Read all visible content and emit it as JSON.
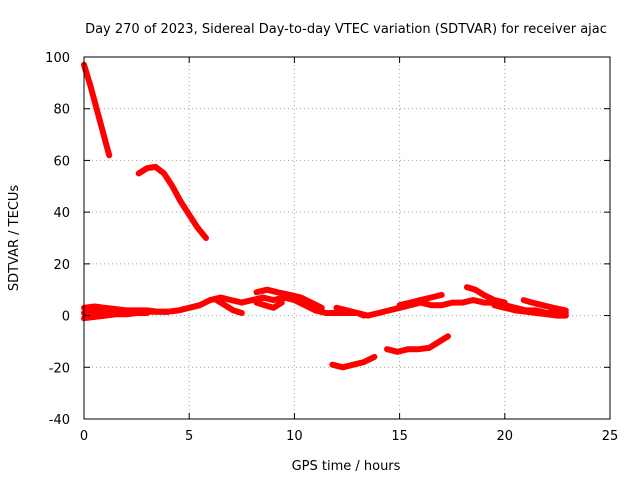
{
  "chart_data": {
    "type": "line",
    "title": "Day 270 of 2023, Sidereal Day-to-day VTEC variation (SDTVAR) for receiver ajac",
    "xlabel": "GPS time / hours",
    "ylabel": "SDTVAR / TECUs",
    "xlim": [
      0,
      25
    ],
    "ylim": [
      -40,
      100
    ],
    "xticks": [
      0,
      5,
      10,
      15,
      20,
      25
    ],
    "yticks": [
      -40,
      -20,
      0,
      20,
      40,
      60,
      80,
      100
    ],
    "xtick_labels": [
      "0",
      "5",
      "10",
      "15",
      "20",
      "25"
    ],
    "ytick_labels": [
      "-40",
      "-20",
      "0",
      "20",
      "40",
      "60",
      "80",
      "100"
    ],
    "grid": true,
    "color": "#ff0000",
    "series": [
      {
        "name": "arc-1",
        "points": [
          [
            0.0,
            97
          ],
          [
            0.3,
            89
          ],
          [
            0.6,
            80
          ],
          [
            0.9,
            71
          ],
          [
            1.2,
            62
          ]
        ]
      },
      {
        "name": "arc-2",
        "points": [
          [
            2.6,
            55
          ],
          [
            3.0,
            57
          ],
          [
            3.4,
            57.5
          ],
          [
            3.8,
            55
          ],
          [
            4.2,
            50
          ],
          [
            4.6,
            44
          ],
          [
            5.0,
            39
          ],
          [
            5.4,
            34
          ],
          [
            5.8,
            30
          ]
        ]
      },
      {
        "name": "arc-3",
        "points": [
          [
            0.0,
            1
          ],
          [
            0.5,
            1.5
          ],
          [
            1.0,
            1
          ],
          [
            1.5,
            1.5
          ],
          [
            2.0,
            1.5
          ],
          [
            2.5,
            2
          ],
          [
            3.0,
            2
          ],
          [
            3.5,
            1.5
          ],
          [
            4.0,
            1.5
          ],
          [
            4.5,
            2
          ],
          [
            5.0,
            3
          ],
          [
            5.5,
            4
          ],
          [
            6.0,
            6
          ],
          [
            6.5,
            7
          ],
          [
            7.0,
            6
          ],
          [
            7.5,
            5
          ],
          [
            8.0,
            6
          ],
          [
            8.5,
            7
          ],
          [
            9.0,
            6
          ],
          [
            9.5,
            7
          ],
          [
            10.0,
            6
          ],
          [
            10.5,
            4
          ],
          [
            11.0,
            2
          ],
          [
            11.5,
            1
          ],
          [
            12.0,
            1
          ],
          [
            12.5,
            1
          ],
          [
            13.0,
            1
          ],
          [
            13.5,
            0
          ],
          [
            14.0,
            1
          ],
          [
            14.5,
            2
          ],
          [
            15.0,
            3
          ],
          [
            15.5,
            4
          ],
          [
            16.0,
            5
          ],
          [
            16.5,
            4
          ],
          [
            17.0,
            4
          ],
          [
            17.5,
            5
          ],
          [
            18.0,
            5
          ],
          [
            18.5,
            6
          ],
          [
            19.0,
            5
          ],
          [
            19.5,
            5
          ],
          [
            20.0,
            4
          ],
          [
            20.5,
            3
          ],
          [
            21.0,
            2
          ],
          [
            21.5,
            2
          ],
          [
            22.0,
            1
          ],
          [
            22.5,
            1
          ],
          [
            22.9,
            1
          ]
        ]
      },
      {
        "name": "arc-4",
        "points": [
          [
            0.0,
            3
          ],
          [
            0.5,
            3.5
          ],
          [
            1.0,
            3
          ],
          [
            1.5,
            2.5
          ],
          [
            2.0,
            2
          ],
          [
            2.5,
            2
          ],
          [
            3.0,
            1.5
          ],
          [
            3.5,
            1.5
          ],
          [
            4.0,
            1.5
          ]
        ]
      },
      {
        "name": "arc-5",
        "points": [
          [
            0.0,
            -1
          ],
          [
            0.5,
            -0.5
          ],
          [
            1.0,
            0
          ],
          [
            1.5,
            0.5
          ],
          [
            2.0,
            0.5
          ],
          [
            2.5,
            1
          ],
          [
            3.0,
            1
          ]
        ]
      },
      {
        "name": "arc-6",
        "points": [
          [
            6.3,
            6
          ],
          [
            6.7,
            4
          ],
          [
            7.1,
            2
          ],
          [
            7.5,
            1
          ]
        ]
      },
      {
        "name": "arc-7",
        "points": [
          [
            8.2,
            9
          ],
          [
            8.7,
            10
          ],
          [
            9.2,
            9
          ],
          [
            9.8,
            8
          ],
          [
            10.3,
            7
          ],
          [
            10.8,
            5
          ],
          [
            11.3,
            3
          ]
        ]
      },
      {
        "name": "arc-8",
        "points": [
          [
            8.2,
            5
          ],
          [
            8.6,
            4
          ],
          [
            9.0,
            3
          ],
          [
            9.4,
            5
          ]
        ]
      },
      {
        "name": "arc-9",
        "points": [
          [
            12.0,
            3
          ],
          [
            12.5,
            2
          ],
          [
            13.0,
            1
          ],
          [
            13.3,
            0
          ]
        ]
      },
      {
        "name": "arc-10",
        "points": [
          [
            15.0,
            4
          ],
          [
            15.5,
            5
          ],
          [
            16.0,
            6
          ],
          [
            16.5,
            7
          ],
          [
            17.0,
            8
          ]
        ]
      },
      {
        "name": "arc-11",
        "points": [
          [
            18.2,
            11
          ],
          [
            18.6,
            10
          ],
          [
            19.0,
            8
          ],
          [
            19.5,
            6
          ],
          [
            20.0,
            5
          ]
        ]
      },
      {
        "name": "arc-12",
        "points": [
          [
            19.5,
            4
          ],
          [
            20.0,
            3
          ],
          [
            20.5,
            2
          ],
          [
            21.0,
            1.5
          ],
          [
            21.5,
            1
          ],
          [
            22.0,
            0.5
          ],
          [
            22.5,
            0
          ],
          [
            22.9,
            0
          ]
        ]
      },
      {
        "name": "arc-13",
        "points": [
          [
            20.9,
            6
          ],
          [
            21.3,
            5
          ],
          [
            21.8,
            4
          ],
          [
            22.3,
            3
          ],
          [
            22.9,
            2
          ]
        ]
      },
      {
        "name": "arc-14",
        "points": [
          [
            11.8,
            -19
          ],
          [
            12.3,
            -20
          ],
          [
            12.8,
            -19
          ],
          [
            13.3,
            -18
          ],
          [
            13.8,
            -16
          ]
        ]
      },
      {
        "name": "arc-15",
        "points": [
          [
            14.4,
            -13
          ],
          [
            14.9,
            -14
          ],
          [
            15.4,
            -13
          ],
          [
            15.9,
            -13
          ],
          [
            16.4,
            -12.5
          ],
          [
            16.9,
            -10
          ],
          [
            17.3,
            -8
          ]
        ]
      }
    ]
  }
}
